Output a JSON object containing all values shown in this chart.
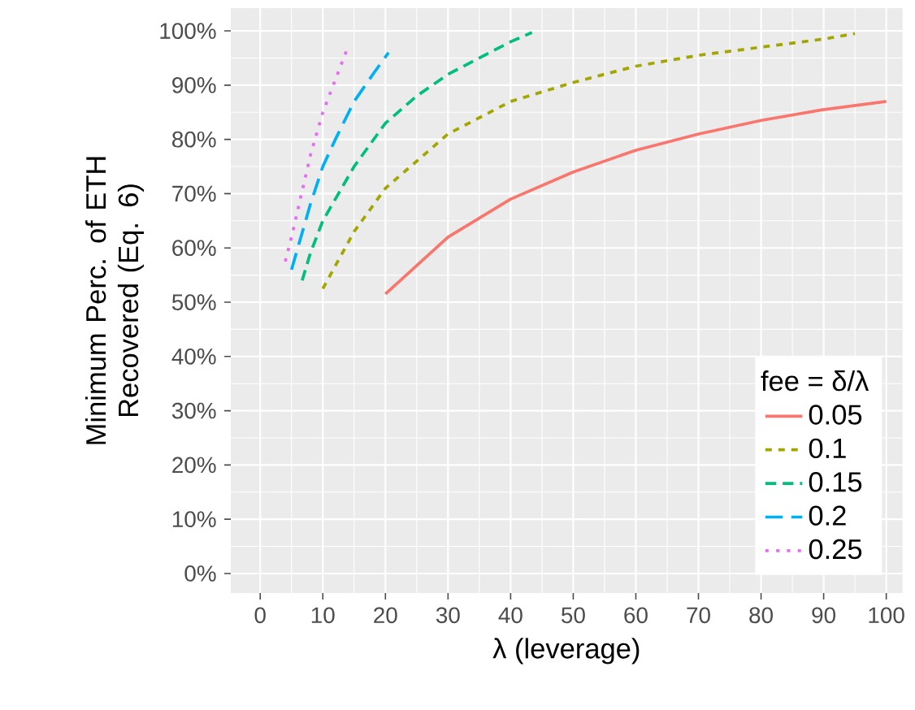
{
  "chart_data": {
    "type": "line",
    "xlabel": "λ (leverage)",
    "ylabel": "Minimum Perc. of ETH Recovered (Eq. 6)",
    "legend_title": "fee = δ/λ",
    "xlim": [
      -4.7,
      102.6
    ],
    "xticks": [
      0,
      10,
      20,
      30,
      40,
      50,
      60,
      70,
      80,
      90,
      100
    ],
    "ylim": [
      -3.6,
      104.2
    ],
    "yticks": [
      {
        "value": 0,
        "label": "0%"
      },
      {
        "value": 10,
        "label": "10%"
      },
      {
        "value": 20,
        "label": "20%"
      },
      {
        "value": 30,
        "label": "30%"
      },
      {
        "value": 40,
        "label": "40%"
      },
      {
        "value": 50,
        "label": "50%"
      },
      {
        "value": 60,
        "label": "60%"
      },
      {
        "value": 70,
        "label": "70%"
      },
      {
        "value": 80,
        "label": "80%"
      },
      {
        "value": 90,
        "label": "90%"
      },
      {
        "value": 100,
        "label": "100%"
      }
    ],
    "grid": true,
    "legend": "bottom right",
    "series": [
      {
        "name": "0.05",
        "color": "#f8766d",
        "line_style": "solid",
        "x": [
          20,
          30,
          40,
          50,
          60,
          70,
          80,
          90,
          100
        ],
        "values": [
          51.5,
          62,
          69,
          74,
          78,
          81,
          83.5,
          85.5,
          87
        ]
      },
      {
        "name": "0.1",
        "color": "#a3a500",
        "line_style": "dashed",
        "x": [
          10,
          15,
          20,
          30,
          40,
          50,
          60,
          70,
          80,
          90,
          95
        ],
        "values": [
          52.5,
          63,
          71,
          81,
          87,
          90.5,
          93.5,
          95.5,
          97,
          98.5,
          99.5
        ]
      },
      {
        "name": "0.15",
        "color": "#00bf7d",
        "line_style": "dashed",
        "x": [
          6.7,
          8,
          10,
          15,
          20,
          25,
          30,
          35,
          40,
          43.4
        ],
        "values": [
          54,
          59,
          65,
          75,
          83,
          88,
          92,
          95,
          98,
          99.7
        ]
      },
      {
        "name": "0.2",
        "color": "#00b0f6",
        "line_style": "dashed",
        "x": [
          5,
          6,
          7,
          8,
          10,
          12,
          15,
          18,
          20.5
        ],
        "values": [
          56,
          60,
          64,
          68,
          75,
          80,
          87,
          92,
          96
        ]
      },
      {
        "name": "0.25",
        "color": "#e76bf3",
        "line_style": "dotted",
        "x": [
          4,
          5,
          6,
          7,
          8,
          10,
          12,
          13.8
        ],
        "values": [
          57.5,
          62,
          67,
          72,
          77,
          85,
          91,
          96.4
        ]
      }
    ]
  }
}
